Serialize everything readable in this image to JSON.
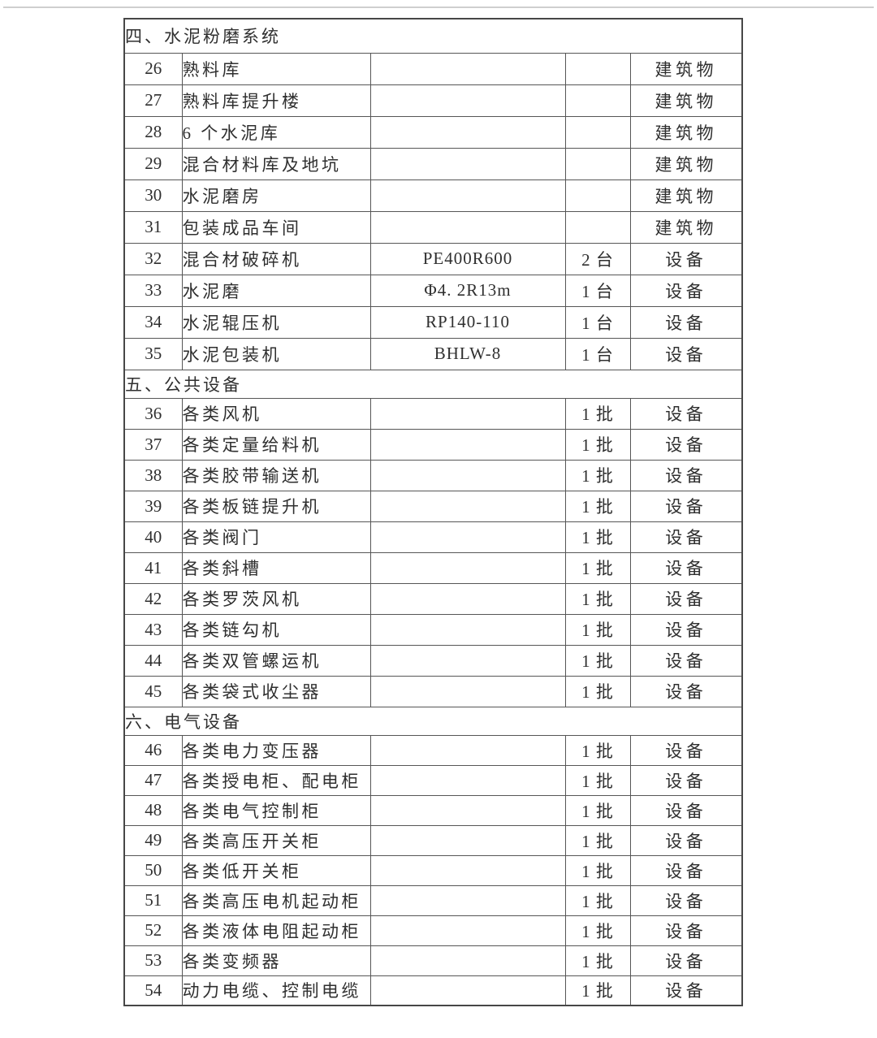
{
  "page": {
    "background": "#ffffff",
    "divider_color": "#cfcfcf"
  },
  "table": {
    "border_color": "#565656",
    "text_color": "#2f2f2f",
    "category_building": "建筑物",
    "category_equipment": "设备",
    "sections": [
      {
        "title": "四、水泥粉磨系统",
        "rows": [
          {
            "no": "26",
            "name": "熟料库",
            "model": "",
            "qty": "",
            "category": "建筑物"
          },
          {
            "no": "27",
            "name": "熟料库提升楼",
            "model": "",
            "qty": "",
            "category": "建筑物"
          },
          {
            "no": "28",
            "name": "6 个水泥库",
            "model": "",
            "qty": "",
            "category": "建筑物"
          },
          {
            "no": "29",
            "name": "混合材料库及地坑",
            "model": "",
            "qty": "",
            "category": "建筑物"
          },
          {
            "no": "30",
            "name": "水泥磨房",
            "model": "",
            "qty": "",
            "category": "建筑物"
          },
          {
            "no": "31",
            "name": "包装成品车间",
            "model": "",
            "qty": "",
            "category": "建筑物"
          },
          {
            "no": "32",
            "name": "混合材破碎机",
            "model": "PE400R600",
            "qty": "2 台",
            "category": "设备"
          },
          {
            "no": "33",
            "name": "水泥磨",
            "model": "Φ4. 2R13m",
            "qty": "1 台",
            "category": "设备"
          },
          {
            "no": "34",
            "name": "水泥辊压机",
            "model": "RP140-110",
            "qty": "1 台",
            "category": "设备"
          },
          {
            "no": "35",
            "name": "水泥包装机",
            "model": "BHLW-8",
            "qty": "1 台",
            "category": "设备"
          }
        ]
      },
      {
        "title": "五、公共设备",
        "rows": [
          {
            "no": "36",
            "name": "各类风机",
            "model": "",
            "qty": "1 批",
            "category": "设备"
          },
          {
            "no": "37",
            "name": "各类定量给料机",
            "model": "",
            "qty": "1 批",
            "category": "设备"
          },
          {
            "no": "38",
            "name": "各类胶带输送机",
            "model": "",
            "qty": "1 批",
            "category": "设备"
          },
          {
            "no": "39",
            "name": "各类板链提升机",
            "model": "",
            "qty": "1 批",
            "category": "设备"
          },
          {
            "no": "40",
            "name": "各类阀门",
            "model": "",
            "qty": "1 批",
            "category": "设备"
          },
          {
            "no": "41",
            "name": "各类斜槽",
            "model": "",
            "qty": "1 批",
            "category": "设备"
          },
          {
            "no": "42",
            "name": "各类罗茨风机",
            "model": "",
            "qty": "1 批",
            "category": "设备"
          },
          {
            "no": "43",
            "name": "各类链勾机",
            "model": "",
            "qty": "1 批",
            "category": "设备"
          },
          {
            "no": "44",
            "name": "各类双管螺运机",
            "model": "",
            "qty": "1 批",
            "category": "设备"
          },
          {
            "no": "45",
            "name": "各类袋式收尘器",
            "model": "",
            "qty": "1 批",
            "category": "设备"
          }
        ]
      },
      {
        "title": "六、电气设备",
        "rows": [
          {
            "no": "46",
            "name": "各类电力变压器",
            "model": "",
            "qty": "1 批",
            "category": "设备"
          },
          {
            "no": "47",
            "name": "各类授电柜、配电柜",
            "model": "",
            "qty": "1 批",
            "category": "设备"
          },
          {
            "no": "48",
            "name": "各类电气控制柜",
            "model": "",
            "qty": "1 批",
            "category": "设备"
          },
          {
            "no": "49",
            "name": "各类高压开关柜",
            "model": "",
            "qty": "1 批",
            "category": "设备"
          },
          {
            "no": "50",
            "name": "各类低开关柜",
            "model": "",
            "qty": "1 批",
            "category": "设备"
          },
          {
            "no": "51",
            "name": "各类高压电机起动柜",
            "model": "",
            "qty": "1 批",
            "category": "设备"
          },
          {
            "no": "52",
            "name": "各类液体电阻起动柜",
            "model": "",
            "qty": "1 批",
            "category": "设备"
          },
          {
            "no": "53",
            "name": "各类变频器",
            "model": "",
            "qty": "1 批",
            "category": "设备"
          },
          {
            "no": "54",
            "name": "动力电缆、控制电缆",
            "model": "",
            "qty": "1 批",
            "category": "设备"
          }
        ]
      }
    ]
  }
}
